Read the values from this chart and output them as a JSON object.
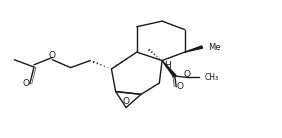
{
  "bg_color": "#ffffff",
  "line_color": "#1a1a1a",
  "lw": 1.0,
  "figsize": [
    2.82,
    1.38
  ],
  "dpi": 100,
  "xlim": [
    0,
    10
  ],
  "ylim": [
    0,
    4.9
  ]
}
